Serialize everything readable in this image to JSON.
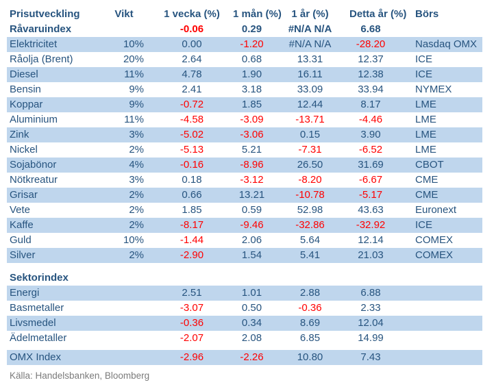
{
  "table": {
    "headers": {
      "name": "Prisutveckling",
      "vikt": "Vikt",
      "week": "1 vecka (%)",
      "month": "1 mån (%)",
      "year": "1 år (%)",
      "ytd": "Detta år (%)",
      "exchange": "Börs"
    },
    "rows": [
      {
        "kind": "data",
        "bold": true,
        "shaded": false,
        "name": "Råvaruindex",
        "vikt": "",
        "week": "-0.06",
        "month": "0.29",
        "year": "#N/A N/A",
        "ytd": "6.68",
        "exchange": ""
      },
      {
        "kind": "data",
        "bold": false,
        "shaded": true,
        "name": "Elektricitet",
        "vikt": "10%",
        "week": "0.00",
        "month": "-1.20",
        "year": "#N/A N/A",
        "ytd": "-28.20",
        "exchange": "Nasdaq OMX"
      },
      {
        "kind": "data",
        "bold": false,
        "shaded": false,
        "name": "Råolja (Brent)",
        "vikt": "20%",
        "week": "2.64",
        "month": "0.68",
        "year": "13.31",
        "ytd": "12.37",
        "exchange": "ICE"
      },
      {
        "kind": "data",
        "bold": false,
        "shaded": true,
        "name": "Diesel",
        "vikt": "11%",
        "week": "4.78",
        "month": "1.90",
        "year": "16.11",
        "ytd": "12.38",
        "exchange": "ICE"
      },
      {
        "kind": "data",
        "bold": false,
        "shaded": false,
        "name": "Bensin",
        "vikt": "9%",
        "week": "2.41",
        "month": "3.18",
        "year": "33.09",
        "ytd": "33.94",
        "exchange": "NYMEX"
      },
      {
        "kind": "data",
        "bold": false,
        "shaded": true,
        "name": "Koppar",
        "vikt": "9%",
        "week": "-0.72",
        "month": "1.85",
        "year": "12.44",
        "ytd": "8.17",
        "exchange": "LME"
      },
      {
        "kind": "data",
        "bold": false,
        "shaded": false,
        "name": "Aluminium",
        "vikt": "11%",
        "week": "-4.58",
        "month": "-3.09",
        "year": "-13.71",
        "ytd": "-4.46",
        "exchange": "LME"
      },
      {
        "kind": "data",
        "bold": false,
        "shaded": true,
        "name": "Zink",
        "vikt": "3%",
        "week": "-5.02",
        "month": "-3.06",
        "year": "0.15",
        "ytd": "3.90",
        "exchange": "LME"
      },
      {
        "kind": "data",
        "bold": false,
        "shaded": false,
        "name": "Nickel",
        "vikt": "2%",
        "week": "-5.13",
        "month": "5.21",
        "year": "-7.31",
        "ytd": "-6.52",
        "exchange": "LME"
      },
      {
        "kind": "data",
        "bold": false,
        "shaded": true,
        "name": "Sojabönor",
        "vikt": "4%",
        "week": "-0.16",
        "month": "-8.96",
        "year": "26.50",
        "ytd": "31.69",
        "exchange": "CBOT"
      },
      {
        "kind": "data",
        "bold": false,
        "shaded": false,
        "name": "Nötkreatur",
        "vikt": "3%",
        "week": "0.18",
        "month": "-3.12",
        "year": "-8.20",
        "ytd": "-6.67",
        "exchange": "CME"
      },
      {
        "kind": "data",
        "bold": false,
        "shaded": true,
        "name": "Grisar",
        "vikt": "2%",
        "week": "0.66",
        "month": "13.21",
        "year": "-10.78",
        "ytd": "-5.17",
        "exchange": "CME"
      },
      {
        "kind": "data",
        "bold": false,
        "shaded": false,
        "name": "Vete",
        "vikt": "2%",
        "week": "1.85",
        "month": "0.59",
        "year": "52.98",
        "ytd": "43.63",
        "exchange": "Euronext"
      },
      {
        "kind": "data",
        "bold": false,
        "shaded": true,
        "name": "Kaffe",
        "vikt": "2%",
        "week": "-8.17",
        "month": "-9.46",
        "year": "-32.86",
        "ytd": "-32.92",
        "exchange": "ICE"
      },
      {
        "kind": "data",
        "bold": false,
        "shaded": false,
        "name": "Guld",
        "vikt": "10%",
        "week": "-1.44",
        "month": "2.06",
        "year": "5.64",
        "ytd": "12.14",
        "exchange": "COMEX"
      },
      {
        "kind": "data",
        "bold": false,
        "shaded": true,
        "name": "Silver",
        "vikt": "2%",
        "week": "-2.90",
        "month": "1.54",
        "year": "5.41",
        "ytd": "21.03",
        "exchange": "COMEX"
      },
      {
        "kind": "spacer",
        "height": 11
      },
      {
        "kind": "section",
        "bold": true,
        "shaded": false,
        "name": "Sektorindex",
        "vikt": "",
        "week": "",
        "month": "",
        "year": "",
        "ytd": "",
        "exchange": ""
      },
      {
        "kind": "data",
        "bold": false,
        "shaded": true,
        "name": "Energi",
        "vikt": "",
        "week": "2.51",
        "month": "1.01",
        "year": "2.88",
        "ytd": "6.88",
        "exchange": ""
      },
      {
        "kind": "data",
        "bold": false,
        "shaded": false,
        "name": "Basmetaller",
        "vikt": "",
        "week": "-3.07",
        "month": "0.50",
        "year": "-0.36",
        "ytd": "2.33",
        "exchange": ""
      },
      {
        "kind": "data",
        "bold": false,
        "shaded": true,
        "name": "Livsmedel",
        "vikt": "",
        "week": "-0.36",
        "month": "0.34",
        "year": "8.69",
        "ytd": "12.04",
        "exchange": ""
      },
      {
        "kind": "data",
        "bold": false,
        "shaded": false,
        "name": "Ädelmetaller",
        "vikt": "",
        "week": "-2.07",
        "month": "2.08",
        "year": "6.85",
        "ytd": "14.99",
        "exchange": ""
      },
      {
        "kind": "spacer",
        "height": 6
      },
      {
        "kind": "data",
        "bold": false,
        "shaded": true,
        "name": "OMX Index",
        "vikt": "",
        "week": "-2.96",
        "month": "-2.26",
        "year": "10.80",
        "ytd": "7.43",
        "exchange": ""
      }
    ]
  },
  "source": "Källa: Handelsbanken, Bloomberg",
  "colors": {
    "row_shade": "#BFD6ED",
    "text_blue": "#27547F",
    "negative_red": "#FF0000",
    "source_gray": "#7B7B7B"
  }
}
